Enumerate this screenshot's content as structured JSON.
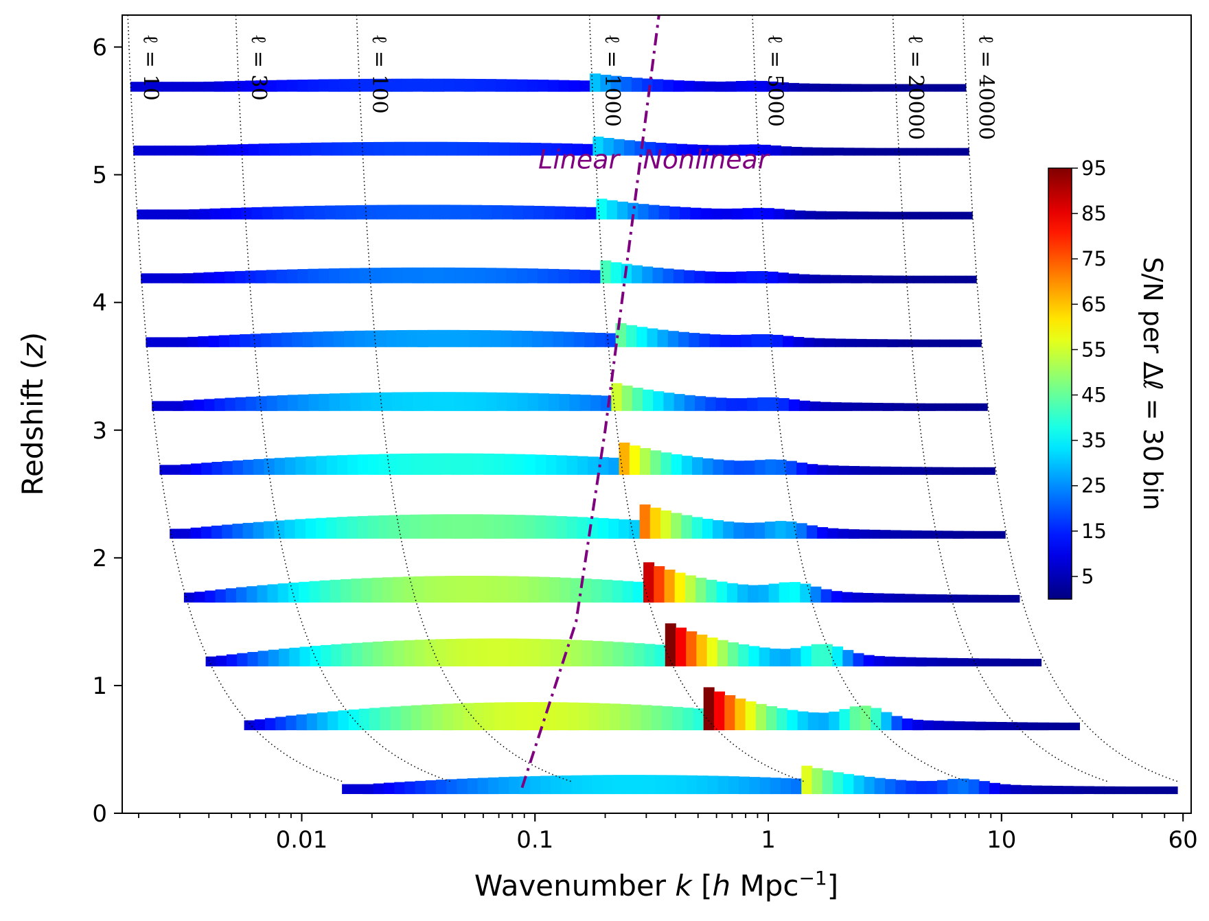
{
  "chart_data": {
    "type": "area",
    "xlabel": "Wavenumber k [h Mpc⁻¹]",
    "ylabel": "Redshift (z)",
    "xscale": "log",
    "xlim": [
      0.0017,
      65
    ],
    "ylim": [
      0,
      6.25
    ],
    "x_ticks": [
      {
        "value": 0.01,
        "label": "0.01"
      },
      {
        "value": 0.1,
        "label": "0.1"
      },
      {
        "value": 1,
        "label": "1"
      },
      {
        "value": 10,
        "label": "10"
      },
      {
        "value": 60,
        "label": "60"
      }
    ],
    "y_ticks": [
      {
        "value": 0,
        "label": "0"
      },
      {
        "value": 1,
        "label": "1"
      },
      {
        "value": 2,
        "label": "2"
      },
      {
        "value": 3,
        "label": "3"
      },
      {
        "value": 4,
        "label": "4"
      },
      {
        "value": 5,
        "label": "5"
      },
      {
        "value": 6,
        "label": "6"
      }
    ],
    "ell_curves": [
      {
        "ell": 10,
        "label": "ℓ = 10"
      },
      {
        "ell": 30,
        "label": "ℓ = 30"
      },
      {
        "ell": 100,
        "label": "ℓ = 100"
      },
      {
        "ell": 1000,
        "label": "ℓ = 1000"
      },
      {
        "ell": 5000,
        "label": "ℓ = 5000"
      },
      {
        "ell": 20000,
        "label": "ℓ = 20000"
      },
      {
        "ell": 40000,
        "label": "ℓ = 40000"
      }
    ],
    "linear_divide_label_left": "Linear",
    "linear_divide_label_right": "Nonlinear",
    "linear_divide_color": "#7f007f",
    "linear_divide_line": [
      [
        0.088,
        0.2
      ],
      [
        0.15,
        1.5
      ],
      [
        0.2,
        3.0
      ],
      [
        0.26,
        4.6
      ],
      [
        0.34,
        6.25
      ]
    ],
    "shell_redshifts": [
      0.25,
      0.75,
      1.25,
      1.75,
      2.25,
      2.75,
      3.25,
      3.75,
      4.25,
      4.75,
      5.25,
      5.75
    ],
    "shells": [
      {
        "z": 0.25,
        "jump_k": 1.45,
        "peak_sn": 54,
        "bump_k": 7,
        "bump_sn": 22
      },
      {
        "z": 0.75,
        "jump_k": 0.55,
        "peak_sn": 93,
        "bump_k": 2.6,
        "bump_sn": 52
      },
      {
        "z": 1.25,
        "jump_k": 0.38,
        "peak_sn": 92,
        "bump_k": 1.75,
        "bump_sn": 42
      },
      {
        "z": 1.75,
        "jump_k": 0.3,
        "peak_sn": 87,
        "bump_k": 1.3,
        "bump_sn": 33
      },
      {
        "z": 2.25,
        "jump_k": 0.27,
        "peak_sn": 77,
        "bump_k": 1.2,
        "bump_sn": 24
      },
      {
        "z": 2.75,
        "jump_k": 0.24,
        "peak_sn": 64,
        "bump_k": 1.1,
        "bump_sn": 18
      },
      {
        "z": 3.25,
        "jump_k": 0.22,
        "peak_sn": 53,
        "bump_k": 1.05,
        "bump_sn": 14
      },
      {
        "z": 3.75,
        "jump_k": 0.22,
        "peak_sn": 45,
        "bump_k": 1.0,
        "bump_sn": 12
      },
      {
        "z": 4.25,
        "jump_k": 0.2,
        "peak_sn": 39,
        "bump_k": 0.95,
        "bump_sn": 11
      },
      {
        "z": 4.75,
        "jump_k": 0.19,
        "peak_sn": 34,
        "bump_k": 0.95,
        "bump_sn": 10
      },
      {
        "z": 5.25,
        "jump_k": 0.18,
        "peak_sn": 30,
        "bump_k": 0.9,
        "bump_sn": 9
      },
      {
        "z": 5.75,
        "jump_k": 0.18,
        "peak_sn": 27,
        "bump_k": 0.9,
        "bump_sn": 9
      }
    ],
    "colorbar": {
      "label": "S/N per Δℓ = 30 bin",
      "range": [
        0,
        95
      ],
      "colormap": "jet",
      "ticks": [
        5,
        15,
        25,
        35,
        45,
        55,
        65,
        75,
        85,
        95
      ],
      "tick_labels": [
        "5",
        "15",
        "25",
        "35",
        "45",
        "55",
        "65",
        "75",
        "85",
        "95"
      ]
    }
  }
}
